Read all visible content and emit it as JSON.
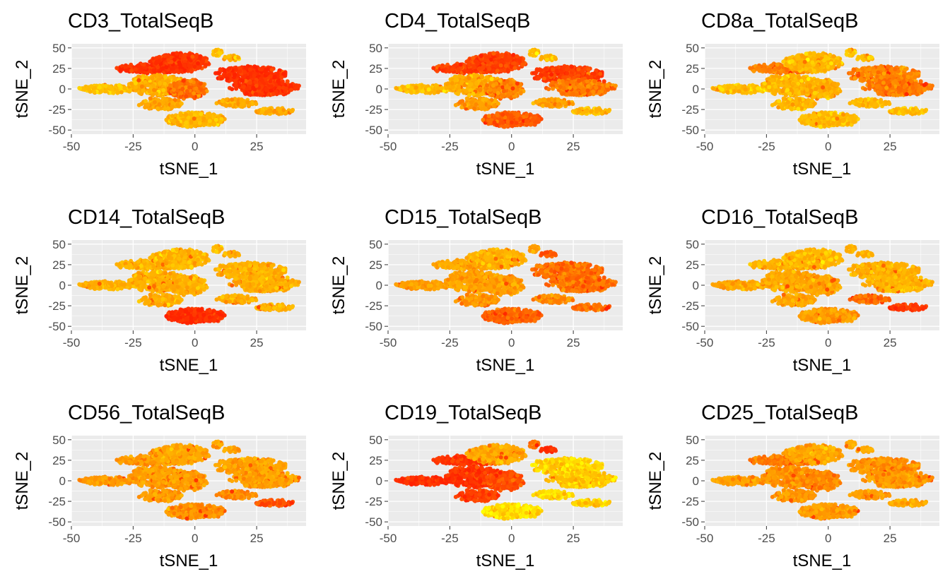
{
  "chart_data": {
    "type": "scatter",
    "layout": "3x3 facet grid",
    "xlabel": "tSNE_1",
    "ylabel": "tSNE_2",
    "xlim": [
      -50,
      45
    ],
    "ylim": [
      -55,
      55
    ],
    "xticks": [
      -50,
      -25,
      0,
      25
    ],
    "yticks": [
      50,
      25,
      0,
      -25,
      -50
    ],
    "grid": true,
    "panel_background": "#ebebeb",
    "grid_color": "#ffffff",
    "color_scale": [
      "#ffff00",
      "#ffc000",
      "#ffa000",
      "#ff7000",
      "#ff4400",
      "#ff2200"
    ],
    "clusters": [
      {
        "id": "left_band",
        "cx": -35,
        "cy": 0,
        "rx": 12,
        "ry": 5
      },
      {
        "id": "upper_left",
        "cx": -18,
        "cy": 25,
        "rx": 14,
        "ry": 6
      },
      {
        "id": "upper_mid",
        "cx": -6,
        "cy": 32,
        "rx": 12,
        "ry": 12
      },
      {
        "id": "mid_left",
        "cx": -15,
        "cy": 5,
        "rx": 12,
        "ry": 13
      },
      {
        "id": "center",
        "cx": -3,
        "cy": 0,
        "rx": 8,
        "ry": 12
      },
      {
        "id": "lower_left",
        "cx": -14,
        "cy": -18,
        "rx": 9,
        "ry": 7
      },
      {
        "id": "bottom",
        "cx": 0,
        "cy": -37,
        "rx": 13,
        "ry": 9
      },
      {
        "id": "right_top",
        "cx": 22,
        "cy": 18,
        "rx": 15,
        "ry": 10
      },
      {
        "id": "right_mid",
        "cx": 28,
        "cy": 2,
        "rx": 14,
        "ry": 10
      },
      {
        "id": "right_low",
        "cx": 33,
        "cy": -27,
        "rx": 9,
        "ry": 4
      },
      {
        "id": "mid_right_low",
        "cx": 17,
        "cy": -17,
        "rx": 8,
        "ry": 5
      },
      {
        "id": "top_small",
        "cx": 9,
        "cy": 45,
        "rx": 2,
        "ry": 5
      },
      {
        "id": "top_right_small",
        "cx": 15,
        "cy": 38,
        "rx": 4,
        "ry": 3
      }
    ],
    "panels": [
      {
        "title": "CD3_TotalSeqB",
        "levels": {
          "left_band": 0.22,
          "upper_left": 0.92,
          "upper_mid": 0.9,
          "mid_left": 0.3,
          "center": 0.6,
          "lower_left": 0.35,
          "bottom": 0.28,
          "right_top": 0.92,
          "right_mid": 0.88,
          "right_low": 0.3,
          "mid_right_low": 0.35,
          "top_small": 0.2,
          "top_right_small": 0.25
        }
      },
      {
        "title": "CD4_TotalSeqB",
        "levels": {
          "left_band": 0.25,
          "upper_left": 0.82,
          "upper_mid": 0.82,
          "mid_left": 0.32,
          "center": 0.5,
          "lower_left": 0.4,
          "bottom": 0.7,
          "right_top": 0.85,
          "right_mid": 0.55,
          "right_low": 0.25,
          "mid_right_low": 0.4,
          "top_small": 0.2,
          "top_right_small": 0.25
        }
      },
      {
        "title": "CD8a_TotalSeqB",
        "levels": {
          "left_band": 0.2,
          "upper_left": 0.55,
          "upper_mid": 0.25,
          "mid_left": 0.25,
          "center": 0.3,
          "lower_left": 0.25,
          "bottom": 0.22,
          "right_top": 0.5,
          "right_mid": 0.55,
          "right_low": 0.22,
          "mid_right_low": 0.25,
          "top_small": 0.18,
          "top_right_small": 0.2
        }
      },
      {
        "title": "CD14_TotalSeqB",
        "levels": {
          "left_band": 0.3,
          "upper_left": 0.3,
          "upper_mid": 0.28,
          "mid_left": 0.3,
          "center": 0.3,
          "lower_left": 0.3,
          "bottom": 0.92,
          "right_top": 0.3,
          "right_mid": 0.3,
          "right_low": 0.28,
          "mid_right_low": 0.3,
          "top_small": 0.25,
          "top_right_small": 0.28
        }
      },
      {
        "title": "CD15_TotalSeqB",
        "levels": {
          "left_band": 0.4,
          "upper_left": 0.35,
          "upper_mid": 0.3,
          "mid_left": 0.38,
          "center": 0.4,
          "lower_left": 0.42,
          "bottom": 0.65,
          "right_top": 0.6,
          "right_mid": 0.6,
          "right_low": 0.6,
          "mid_right_low": 0.5,
          "top_small": 0.4,
          "top_right_small": 0.7
        }
      },
      {
        "title": "CD16_TotalSeqB",
        "levels": {
          "left_band": 0.35,
          "upper_left": 0.3,
          "upper_mid": 0.25,
          "mid_left": 0.35,
          "center": 0.35,
          "lower_left": 0.35,
          "bottom": 0.4,
          "right_top": 0.3,
          "right_mid": 0.28,
          "right_low": 0.85,
          "mid_right_low": 0.6,
          "top_small": 0.3,
          "top_right_small": 0.3
        }
      },
      {
        "title": "CD56_TotalSeqB",
        "levels": {
          "left_band": 0.4,
          "upper_left": 0.4,
          "upper_mid": 0.35,
          "mid_left": 0.4,
          "center": 0.4,
          "lower_left": 0.4,
          "bottom": 0.45,
          "right_top": 0.38,
          "right_mid": 0.38,
          "right_low": 0.75,
          "mid_right_low": 0.5,
          "top_small": 0.35,
          "top_right_small": 0.35
        }
      },
      {
        "title": "CD19_TotalSeqB",
        "levels": {
          "left_band": 0.93,
          "upper_left": 0.9,
          "upper_mid": 0.35,
          "mid_left": 0.9,
          "center": 0.75,
          "lower_left": 0.85,
          "bottom": 0.1,
          "right_top": 0.12,
          "right_mid": 0.18,
          "right_low": 0.15,
          "mid_right_low": 0.12,
          "top_small": 0.6,
          "top_right_small": 0.9
        }
      },
      {
        "title": "CD25_TotalSeqB",
        "levels": {
          "left_band": 0.4,
          "upper_left": 0.55,
          "upper_mid": 0.35,
          "mid_left": 0.45,
          "center": 0.5,
          "lower_left": 0.45,
          "bottom": 0.4,
          "right_top": 0.45,
          "right_mid": 0.42,
          "right_low": 0.35,
          "mid_right_low": 0.4,
          "top_small": 0.35,
          "top_right_small": 0.35
        }
      }
    ]
  }
}
